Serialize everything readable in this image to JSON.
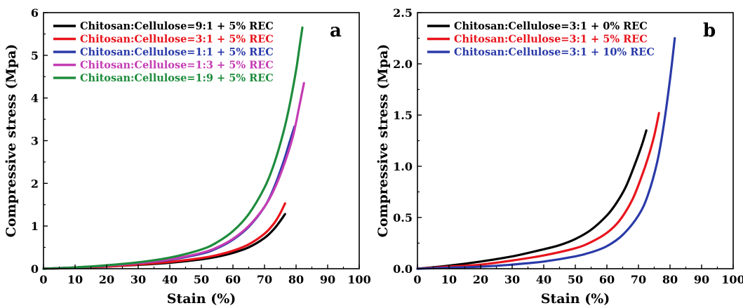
{
  "chart_data": [
    {
      "type": "line",
      "panel_label": "a",
      "xlabel": "Stain (%)",
      "ylabel": "Compressive stress (Mpa)",
      "xlim": [
        0,
        100
      ],
      "ylim": [
        0,
        6
      ],
      "xticks": [
        "0",
        "10",
        "20",
        "30",
        "40",
        "50",
        "60",
        "70",
        "80",
        "90",
        "100"
      ],
      "yticks": [
        "0",
        "1",
        "2",
        "3",
        "4",
        "5",
        "6"
      ],
      "legend_position": "top-left",
      "series": [
        {
          "name": "Chitosan:Cellulose=9:1 + 5% REC",
          "color": "#000000",
          "x": [
            0,
            10,
            20,
            30,
            40,
            50,
            55,
            60,
            65,
            70,
            73,
            75,
            76.5
          ],
          "y": [
            0,
            0.02,
            0.05,
            0.09,
            0.14,
            0.22,
            0.28,
            0.37,
            0.5,
            0.72,
            0.93,
            1.12,
            1.28
          ]
        },
        {
          "name": "Chitosan:Cellulose=3:1 + 5% REC",
          "color": "#e8141c",
          "x": [
            0,
            10,
            20,
            30,
            40,
            50,
            55,
            60,
            65,
            70,
            73,
            75,
            76.5
          ],
          "y": [
            0,
            0.02,
            0.05,
            0.1,
            0.16,
            0.25,
            0.32,
            0.42,
            0.57,
            0.82,
            1.06,
            1.3,
            1.53
          ]
        },
        {
          "name": "Chitosan:Cellulose=1:1 + 5% REC",
          "color": "#2a3aa8",
          "x": [
            0,
            10,
            20,
            30,
            40,
            50,
            55,
            60,
            65,
            70,
            73,
            76,
            78,
            79.5
          ],
          "y": [
            0,
            0.03,
            0.07,
            0.13,
            0.21,
            0.35,
            0.48,
            0.68,
            0.98,
            1.45,
            1.9,
            2.5,
            2.98,
            3.33
          ]
        },
        {
          "name": "Chitosan:Cellulose=1:3 + 5% REC",
          "color": "#c43cb4",
          "x": [
            0,
            10,
            20,
            30,
            40,
            50,
            55,
            60,
            65,
            70,
            73,
            76,
            79,
            81,
            82.5
          ],
          "y": [
            0,
            0.03,
            0.07,
            0.13,
            0.22,
            0.37,
            0.5,
            0.7,
            1.0,
            1.45,
            1.85,
            2.4,
            3.1,
            3.8,
            4.35
          ]
        },
        {
          "name": "Chitosan:Cellulose=1:9 + 5% REC",
          "color": "#1e8c3c",
          "x": [
            0,
            10,
            20,
            30,
            40,
            50,
            55,
            60,
            65,
            70,
            73,
            76,
            78,
            80,
            81,
            82
          ],
          "y": [
            0,
            0.03,
            0.08,
            0.15,
            0.26,
            0.45,
            0.62,
            0.88,
            1.28,
            1.9,
            2.45,
            3.2,
            3.85,
            4.65,
            5.15,
            5.65
          ]
        }
      ]
    },
    {
      "type": "line",
      "panel_label": "b",
      "xlabel": "Stain (%)",
      "ylabel": "Compressive stress (Mpa)",
      "xlim": [
        0,
        100
      ],
      "ylim": [
        0,
        2.5
      ],
      "xticks": [
        "0",
        "10",
        "20",
        "30",
        "40",
        "50",
        "60",
        "70",
        "80",
        "90",
        "100"
      ],
      "yticks": [
        "0.0",
        "0.5",
        "1.0",
        "1.5",
        "2.0",
        "2.5"
      ],
      "legend_position": "top-left",
      "series": [
        {
          "name": "Chitosan:Cellulose=3:1 + 0% REC",
          "color": "#000000",
          "x": [
            0,
            10,
            20,
            30,
            40,
            45,
            50,
            55,
            60,
            63,
            66,
            69,
            71,
            72.5
          ],
          "y": [
            0,
            0.03,
            0.07,
            0.12,
            0.19,
            0.23,
            0.29,
            0.38,
            0.52,
            0.64,
            0.8,
            1.03,
            1.2,
            1.35
          ]
        },
        {
          "name": "Chitosan:Cellulose=3:1 + 5% REC",
          "color": "#e8141c",
          "x": [
            0,
            10,
            20,
            30,
            40,
            50,
            55,
            60,
            64,
            68,
            71,
            73,
            75,
            76.5
          ],
          "y": [
            0,
            0.02,
            0.04,
            0.08,
            0.13,
            0.2,
            0.26,
            0.35,
            0.47,
            0.67,
            0.9,
            1.08,
            1.3,
            1.52
          ]
        },
        {
          "name": "Chitosan:Cellulose=3:1 + 10% REC",
          "color": "#2a3aa8",
          "x": [
            0,
            10,
            20,
            30,
            40,
            50,
            55,
            60,
            65,
            70,
            73,
            76,
            78,
            80,
            81.5
          ],
          "y": [
            0,
            0.01,
            0.02,
            0.04,
            0.07,
            0.12,
            0.16,
            0.22,
            0.33,
            0.52,
            0.72,
            1.05,
            1.4,
            1.85,
            2.25
          ]
        }
      ]
    }
  ]
}
